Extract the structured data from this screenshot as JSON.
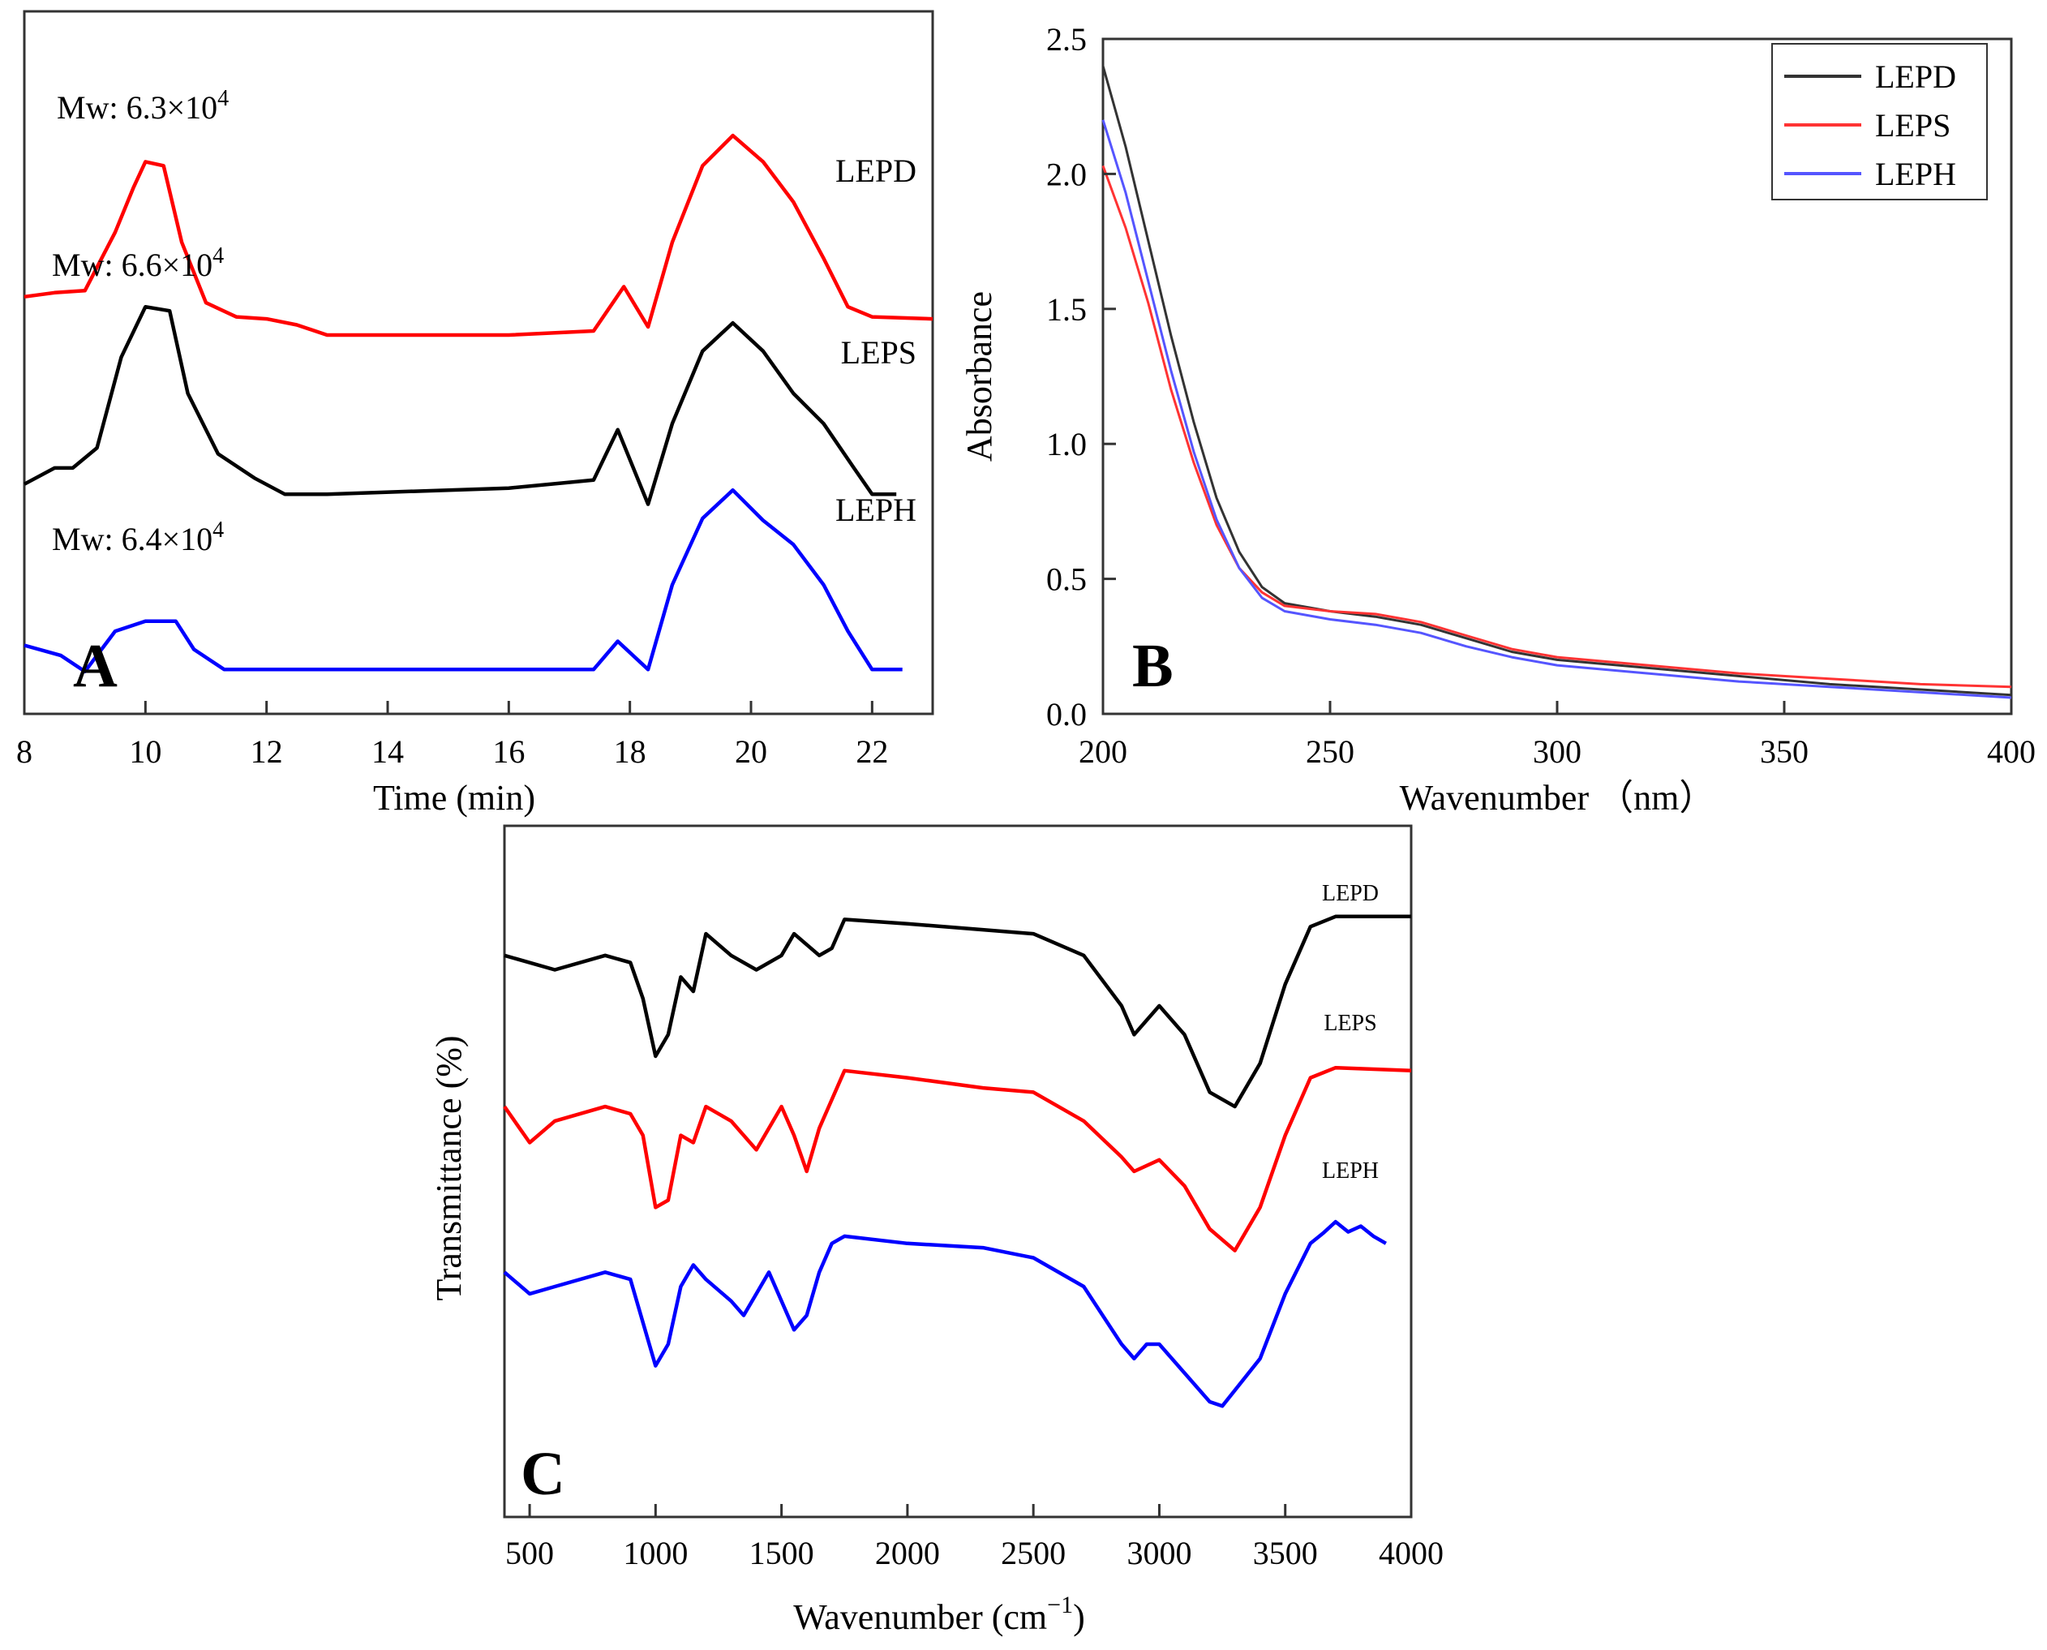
{
  "chart_data": [
    {
      "id": "A",
      "type": "line",
      "panel_label": "A",
      "xlabel": "Time (min)",
      "ylabel": "",
      "xlim": [
        8,
        23
      ],
      "xticks": [
        8,
        10,
        12,
        14,
        16,
        18,
        20,
        22
      ],
      "series": [
        {
          "name": "LEPD",
          "color": "#ff0000",
          "annotation": "Mw: 6.3×10",
          "annotation_exp": "4",
          "points": [
            [
              8,
              0.93
            ],
            [
              8.5,
              0.95
            ],
            [
              9,
              0.96
            ],
            [
              9.5,
              1.25
            ],
            [
              9.8,
              1.47
            ],
            [
              10,
              1.6
            ],
            [
              10.3,
              1.58
            ],
            [
              10.6,
              1.2
            ],
            [
              11,
              0.9
            ],
            [
              11.5,
              0.83
            ],
            [
              12,
              0.82
            ],
            [
              12.5,
              0.79
            ],
            [
              13,
              0.74
            ],
            [
              14,
              0.74
            ],
            [
              16,
              0.74
            ],
            [
              17.4,
              0.76
            ],
            [
              17.9,
              0.98
            ],
            [
              18.3,
              0.78
            ],
            [
              18.7,
              1.2
            ],
            [
              19.2,
              1.58
            ],
            [
              19.7,
              1.73
            ],
            [
              20.2,
              1.6
            ],
            [
              20.7,
              1.4
            ],
            [
              21.2,
              1.12
            ],
            [
              21.6,
              0.88
            ],
            [
              22,
              0.83
            ],
            [
              23,
              0.82
            ]
          ]
        },
        {
          "name": "LEPS",
          "color": "#000000",
          "annotation": "Mw: 6.6×10",
          "annotation_exp": "4",
          "points": [
            [
              8,
              0
            ],
            [
              8.5,
              0.08
            ],
            [
              8.8,
              0.08
            ],
            [
              9.2,
              0.18
            ],
            [
              9.6,
              0.63
            ],
            [
              10,
              0.88
            ],
            [
              10.4,
              0.86
            ],
            [
              10.7,
              0.45
            ],
            [
              11.2,
              0.15
            ],
            [
              11.8,
              0.03
            ],
            [
              12.3,
              -0.05
            ],
            [
              13,
              -0.05
            ],
            [
              16,
              -0.02
            ],
            [
              17.4,
              0.02
            ],
            [
              17.8,
              0.27
            ],
            [
              18.3,
              -0.1
            ],
            [
              18.7,
              0.3
            ],
            [
              19.2,
              0.66
            ],
            [
              19.7,
              0.8
            ],
            [
              20.2,
              0.66
            ],
            [
              20.7,
              0.45
            ],
            [
              21.2,
              0.3
            ],
            [
              21.7,
              0.08
            ],
            [
              22,
              -0.05
            ],
            [
              22.4,
              -0.05
            ]
          ]
        },
        {
          "name": "LEPH",
          "color": "#0000ff",
          "annotation": "Mw: 6.4×10",
          "annotation_exp": "4",
          "points": [
            [
              8,
              -0.8
            ],
            [
              8.6,
              -0.85
            ],
            [
              9,
              -0.93
            ],
            [
              9.5,
              -0.73
            ],
            [
              10,
              -0.68
            ],
            [
              10.5,
              -0.68
            ],
            [
              10.8,
              -0.82
            ],
            [
              11.3,
              -0.92
            ],
            [
              12,
              -0.92
            ],
            [
              17.4,
              -0.92
            ],
            [
              17.8,
              -0.78
            ],
            [
              18.3,
              -0.92
            ],
            [
              18.7,
              -0.5
            ],
            [
              19.2,
              -0.17
            ],
            [
              19.7,
              -0.03
            ],
            [
              20.2,
              -0.18
            ],
            [
              20.7,
              -0.3
            ],
            [
              21.2,
              -0.5
            ],
            [
              21.6,
              -0.73
            ],
            [
              22,
              -0.92
            ],
            [
              22.5,
              -0.92
            ]
          ]
        }
      ]
    },
    {
      "id": "B",
      "type": "line",
      "panel_label": "B",
      "xlabel": "Wavenumber （nm）",
      "ylabel": "Absorbance",
      "xlim": [
        200,
        400
      ],
      "ylim": [
        0,
        2.5
      ],
      "xticks": [
        200,
        250,
        300,
        350,
        400
      ],
      "yticks": [
        0.0,
        0.5,
        1.0,
        1.5,
        2.0,
        2.5
      ],
      "ytick_labels": [
        "0.0",
        "0.5",
        "1.0",
        "1.5",
        "2.0",
        "2.5"
      ],
      "legend": "top-right",
      "series": [
        {
          "name": "LEPD",
          "color": "#333333",
          "points": [
            [
              200,
              2.4
            ],
            [
              205,
              2.1
            ],
            [
              210,
              1.75
            ],
            [
              215,
              1.4
            ],
            [
              220,
              1.08
            ],
            [
              225,
              0.8
            ],
            [
              230,
              0.6
            ],
            [
              235,
              0.47
            ],
            [
              240,
              0.41
            ],
            [
              250,
              0.38
            ],
            [
              260,
              0.36
            ],
            [
              270,
              0.33
            ],
            [
              280,
              0.28
            ],
            [
              290,
              0.23
            ],
            [
              300,
              0.2
            ],
            [
              320,
              0.17
            ],
            [
              340,
              0.14
            ],
            [
              360,
              0.11
            ],
            [
              380,
              0.09
            ],
            [
              400,
              0.07
            ]
          ]
        },
        {
          "name": "LEPS",
          "color": "#ff3333",
          "points": [
            [
              200,
              2.03
            ],
            [
              205,
              1.8
            ],
            [
              210,
              1.52
            ],
            [
              215,
              1.2
            ],
            [
              220,
              0.93
            ],
            [
              225,
              0.7
            ],
            [
              230,
              0.54
            ],
            [
              235,
              0.45
            ],
            [
              240,
              0.4
            ],
            [
              250,
              0.38
            ],
            [
              260,
              0.37
            ],
            [
              270,
              0.34
            ],
            [
              280,
              0.29
            ],
            [
              290,
              0.24
            ],
            [
              300,
              0.21
            ],
            [
              320,
              0.18
            ],
            [
              340,
              0.15
            ],
            [
              360,
              0.13
            ],
            [
              380,
              0.11
            ],
            [
              400,
              0.1
            ]
          ]
        },
        {
          "name": "LEPH",
          "color": "#5555ff",
          "points": [
            [
              200,
              2.2
            ],
            [
              205,
              1.93
            ],
            [
              210,
              1.6
            ],
            [
              215,
              1.27
            ],
            [
              220,
              0.97
            ],
            [
              225,
              0.72
            ],
            [
              230,
              0.54
            ],
            [
              235,
              0.43
            ],
            [
              240,
              0.38
            ],
            [
              250,
              0.35
            ],
            [
              260,
              0.33
            ],
            [
              270,
              0.3
            ],
            [
              280,
              0.25
            ],
            [
              290,
              0.21
            ],
            [
              300,
              0.18
            ],
            [
              320,
              0.15
            ],
            [
              340,
              0.12
            ],
            [
              360,
              0.1
            ],
            [
              380,
              0.08
            ],
            [
              400,
              0.06
            ]
          ]
        }
      ]
    },
    {
      "id": "C",
      "type": "line",
      "panel_label": "C",
      "xlabel": "Wavenumber (cm",
      "xlabel_sup": "−1",
      "xlabel_end": ")",
      "ylabel": "Transmittance (%)",
      "xlim": [
        400,
        4000
      ],
      "xticks": [
        500,
        1000,
        1500,
        2000,
        2500,
        3000,
        3500,
        4000
      ],
      "series": [
        {
          "name": "LEPD",
          "color": "#000000",
          "points": [
            [
              400,
              2.3
            ],
            [
              600,
              2.2
            ],
            [
              800,
              2.3
            ],
            [
              900,
              2.25
            ],
            [
              950,
              2.0
            ],
            [
              1000,
              1.6
            ],
            [
              1050,
              1.75
            ],
            [
              1100,
              2.15
            ],
            [
              1150,
              2.05
            ],
            [
              1200,
              2.45
            ],
            [
              1300,
              2.3
            ],
            [
              1400,
              2.2
            ],
            [
              1500,
              2.3
            ],
            [
              1550,
              2.45
            ],
            [
              1650,
              2.3
            ],
            [
              1700,
              2.35
            ],
            [
              1750,
              2.55
            ],
            [
              2000,
              2.52
            ],
            [
              2500,
              2.45
            ],
            [
              2700,
              2.3
            ],
            [
              2850,
              1.95
            ],
            [
              2900,
              1.75
            ],
            [
              2950,
              1.85
            ],
            [
              3000,
              1.95
            ],
            [
              3100,
              1.75
            ],
            [
              3200,
              1.35
            ],
            [
              3300,
              1.25
            ],
            [
              3400,
              1.55
            ],
            [
              3500,
              2.1
            ],
            [
              3600,
              2.5
            ],
            [
              3700,
              2.57
            ],
            [
              4000,
              2.57
            ]
          ]
        },
        {
          "name": "LEPS",
          "color": "#ff0000",
          "points": [
            [
              400,
              1.25
            ],
            [
              500,
              1.0
            ],
            [
              600,
              1.15
            ],
            [
              800,
              1.25
            ],
            [
              900,
              1.2
            ],
            [
              950,
              1.05
            ],
            [
              1000,
              0.55
            ],
            [
              1050,
              0.6
            ],
            [
              1100,
              1.05
            ],
            [
              1150,
              1.0
            ],
            [
              1200,
              1.25
            ],
            [
              1300,
              1.15
            ],
            [
              1400,
              0.95
            ],
            [
              1500,
              1.25
            ],
            [
              1550,
              1.05
            ],
            [
              1600,
              0.8
            ],
            [
              1650,
              1.1
            ],
            [
              1750,
              1.5
            ],
            [
              2000,
              1.45
            ],
            [
              2300,
              1.38
            ],
            [
              2500,
              1.35
            ],
            [
              2700,
              1.15
            ],
            [
              2850,
              0.9
            ],
            [
              2900,
              0.8
            ],
            [
              3000,
              0.88
            ],
            [
              3100,
              0.7
            ],
            [
              3200,
              0.4
            ],
            [
              3300,
              0.25
            ],
            [
              3400,
              0.55
            ],
            [
              3500,
              1.05
            ],
            [
              3600,
              1.45
            ],
            [
              3700,
              1.52
            ],
            [
              4000,
              1.5
            ]
          ]
        },
        {
          "name": "LEPH",
          "color": "#0000ff",
          "points": [
            [
              400,
              0.1
            ],
            [
              500,
              -0.05
            ],
            [
              600,
              0.0
            ],
            [
              800,
              0.1
            ],
            [
              900,
              0.05
            ],
            [
              950,
              -0.25
            ],
            [
              1000,
              -0.55
            ],
            [
              1050,
              -0.4
            ],
            [
              1100,
              0.0
            ],
            [
              1150,
              0.15
            ],
            [
              1200,
              0.05
            ],
            [
              1300,
              -0.1
            ],
            [
              1350,
              -0.2
            ],
            [
              1400,
              -0.05
            ],
            [
              1450,
              0.1
            ],
            [
              1500,
              -0.1
            ],
            [
              1550,
              -0.3
            ],
            [
              1600,
              -0.2
            ],
            [
              1650,
              0.1
            ],
            [
              1700,
              0.3
            ],
            [
              1750,
              0.35
            ],
            [
              2000,
              0.3
            ],
            [
              2300,
              0.27
            ],
            [
              2500,
              0.2
            ],
            [
              2700,
              0.0
            ],
            [
              2850,
              -0.4
            ],
            [
              2900,
              -0.5
            ],
            [
              2950,
              -0.4
            ],
            [
              3000,
              -0.4
            ],
            [
              3100,
              -0.6
            ],
            [
              3200,
              -0.8
            ],
            [
              3250,
              -0.83
            ],
            [
              3400,
              -0.5
            ],
            [
              3500,
              -0.05
            ],
            [
              3600,
              0.3
            ],
            [
              3650,
              0.37
            ],
            [
              3700,
              0.45
            ],
            [
              3750,
              0.38
            ],
            [
              3800,
              0.42
            ],
            [
              3850,
              0.35
            ],
            [
              3900,
              0.3
            ]
          ]
        }
      ]
    }
  ]
}
